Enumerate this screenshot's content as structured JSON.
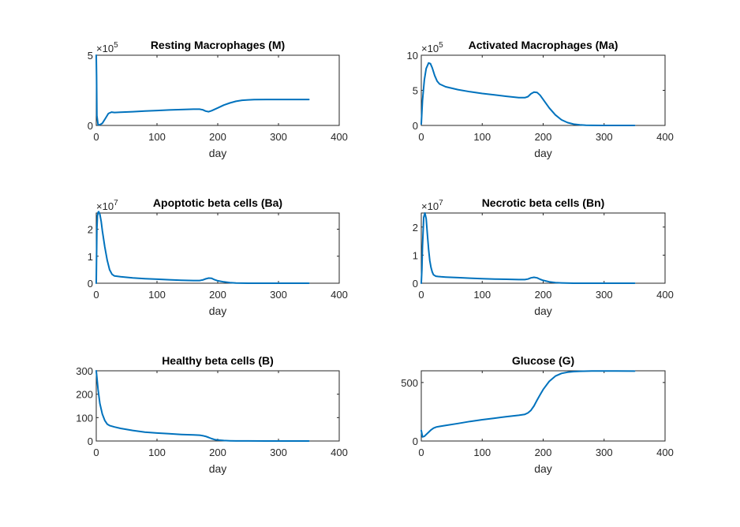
{
  "chart_data": [
    {
      "id": "M",
      "type": "line",
      "title": "Resting Macrophages (M)",
      "xlabel": "day",
      "ylabel": "",
      "xlim": [
        0,
        400
      ],
      "ylim": [
        0,
        5
      ],
      "xticks": [
        "0",
        "100",
        "200",
        "300",
        "400"
      ],
      "yticks": [
        "0",
        "5"
      ],
      "exponent_base": "×10",
      "exponent_power": "5",
      "series": [
        {
          "color": "#0072BD",
          "x": [
            0,
            0.5,
            1,
            3,
            6,
            10,
            15,
            20,
            25,
            30,
            40,
            60,
            80,
            100,
            120,
            140,
            160,
            170,
            175,
            180,
            185,
            190,
            200,
            210,
            220,
            230,
            240,
            250,
            260,
            280,
            300,
            320,
            340,
            350
          ],
          "y": [
            5,
            3.5,
            0.7,
            0.05,
            0.05,
            0.15,
            0.5,
            0.85,
            0.95,
            0.92,
            0.94,
            0.98,
            1.03,
            1.06,
            1.1,
            1.13,
            1.16,
            1.16,
            1.12,
            1.02,
            0.98,
            1.05,
            1.25,
            1.45,
            1.6,
            1.72,
            1.79,
            1.82,
            1.84,
            1.85,
            1.85,
            1.85,
            1.85,
            1.85
          ]
        }
      ]
    },
    {
      "id": "Ma",
      "type": "line",
      "title": "Activated Macrophages (Ma)",
      "xlabel": "day",
      "ylabel": "",
      "xlim": [
        0,
        400
      ],
      "ylim": [
        0,
        10
      ],
      "xticks": [
        "0",
        "100",
        "200",
        "300",
        "400"
      ],
      "yticks": [
        "0",
        "5",
        "10"
      ],
      "exponent_base": "×10",
      "exponent_power": "5",
      "series": [
        {
          "color": "#0072BD",
          "x": [
            0,
            2,
            5,
            8,
            12,
            15,
            18,
            22,
            26,
            30,
            40,
            60,
            80,
            100,
            120,
            140,
            160,
            170,
            175,
            180,
            185,
            190,
            195,
            200,
            210,
            220,
            230,
            240,
            250,
            260,
            270,
            280,
            300,
            320,
            350
          ],
          "y": [
            0.2,
            3.5,
            6.5,
            8.1,
            8.9,
            8.8,
            8.2,
            7.1,
            6.3,
            5.9,
            5.5,
            5.1,
            4.8,
            4.55,
            4.35,
            4.15,
            3.95,
            3.95,
            4.1,
            4.5,
            4.75,
            4.7,
            4.3,
            3.7,
            2.5,
            1.5,
            0.8,
            0.4,
            0.18,
            0.08,
            0.03,
            0.01,
            0,
            0,
            0
          ]
        }
      ]
    },
    {
      "id": "Ba",
      "type": "line",
      "title": "Apoptotic beta cells (Ba)",
      "xlabel": "day",
      "ylabel": "",
      "xlim": [
        0,
        400
      ],
      "ylim": [
        0,
        2.6
      ],
      "xticks": [
        "0",
        "100",
        "200",
        "300",
        "400"
      ],
      "yticks": [
        "0",
        "1",
        "2"
      ],
      "exponent_base": "×10",
      "exponent_power": "7",
      "series": [
        {
          "color": "#0072BD",
          "x": [
            0,
            1,
            2,
            3,
            4,
            6,
            8,
            10,
            14,
            18,
            22,
            26,
            30,
            40,
            60,
            80,
            100,
            120,
            140,
            160,
            170,
            175,
            180,
            185,
            190,
            195,
            200,
            210,
            220,
            230,
            250,
            280,
            300,
            350
          ],
          "y": [
            0,
            2.0,
            2.5,
            2.62,
            2.65,
            2.55,
            2.3,
            1.95,
            1.35,
            0.85,
            0.5,
            0.33,
            0.27,
            0.24,
            0.2,
            0.17,
            0.15,
            0.13,
            0.11,
            0.1,
            0.1,
            0.12,
            0.16,
            0.19,
            0.18,
            0.13,
            0.09,
            0.05,
            0.02,
            0.01,
            0,
            0,
            0,
            0
          ]
        }
      ]
    },
    {
      "id": "Bn",
      "type": "line",
      "title": "Necrotic beta cells (Bn)",
      "xlabel": "day",
      "ylabel": "",
      "xlim": [
        0,
        400
      ],
      "ylim": [
        0,
        2.5
      ],
      "xticks": [
        "0",
        "100",
        "200",
        "300",
        "400"
      ],
      "yticks": [
        "0",
        "1",
        "2"
      ],
      "exponent_base": "×10",
      "exponent_power": "7",
      "series": [
        {
          "color": "#0072BD",
          "x": [
            0,
            1,
            2,
            4,
            6,
            8,
            10,
            12,
            14,
            16,
            18,
            20,
            24,
            28,
            32,
            40,
            60,
            80,
            100,
            120,
            140,
            160,
            170,
            175,
            180,
            185,
            190,
            195,
            200,
            210,
            220,
            230,
            250,
            280,
            300,
            350
          ],
          "y": [
            0,
            0.5,
            1.3,
            2.35,
            2.5,
            2.3,
            1.75,
            1.2,
            0.8,
            0.55,
            0.4,
            0.3,
            0.25,
            0.24,
            0.23,
            0.22,
            0.2,
            0.18,
            0.16,
            0.15,
            0.14,
            0.13,
            0.13,
            0.15,
            0.19,
            0.21,
            0.19,
            0.14,
            0.1,
            0.05,
            0.02,
            0.01,
            0,
            0,
            0,
            0
          ]
        }
      ]
    },
    {
      "id": "B",
      "type": "line",
      "title": "Healthy beta cells (B)",
      "xlabel": "day",
      "ylabel": "",
      "xlim": [
        0,
        400
      ],
      "ylim": [
        0,
        300
      ],
      "xticks": [
        "0",
        "100",
        "200",
        "300",
        "400"
      ],
      "yticks": [
        "0",
        "100",
        "200",
        "300"
      ],
      "exponent_base": "",
      "exponent_power": "",
      "series": [
        {
          "color": "#0072BD",
          "x": [
            0,
            3,
            6,
            10,
            14,
            18,
            22,
            26,
            30,
            40,
            60,
            80,
            100,
            120,
            140,
            160,
            170,
            175,
            180,
            185,
            190,
            195,
            200,
            210,
            220,
            230,
            250,
            280,
            300,
            350
          ],
          "y": [
            300,
            220,
            160,
            115,
            88,
            72,
            66,
            63,
            60,
            54,
            45,
            38,
            34,
            31,
            28,
            26,
            25,
            23,
            20,
            15,
            10,
            6,
            4,
            2,
            1,
            0.5,
            0.2,
            0.1,
            0.05,
            0
          ]
        }
      ]
    },
    {
      "id": "G",
      "type": "line",
      "title": "Glucose (G)",
      "xlabel": "day",
      "ylabel": "",
      "xlim": [
        0,
        400
      ],
      "ylim": [
        0,
        600
      ],
      "xticks": [
        "0",
        "100",
        "200",
        "300",
        "400"
      ],
      "yticks": [
        "0",
        "500"
      ],
      "exponent_base": "",
      "exponent_power": "",
      "series": [
        {
          "color": "#0072BD",
          "x": [
            0,
            2,
            5,
            8,
            12,
            16,
            20,
            25,
            30,
            40,
            60,
            80,
            100,
            120,
            140,
            160,
            170,
            175,
            180,
            185,
            190,
            195,
            200,
            210,
            220,
            230,
            240,
            250,
            260,
            280,
            300,
            320,
            350
          ],
          "y": [
            90,
            35,
            40,
            55,
            75,
            95,
            110,
            120,
            125,
            133,
            150,
            167,
            182,
            195,
            208,
            220,
            228,
            240,
            262,
            300,
            350,
            395,
            440,
            510,
            555,
            578,
            588,
            593,
            596,
            598,
            598,
            598,
            597
          ]
        }
      ]
    }
  ]
}
